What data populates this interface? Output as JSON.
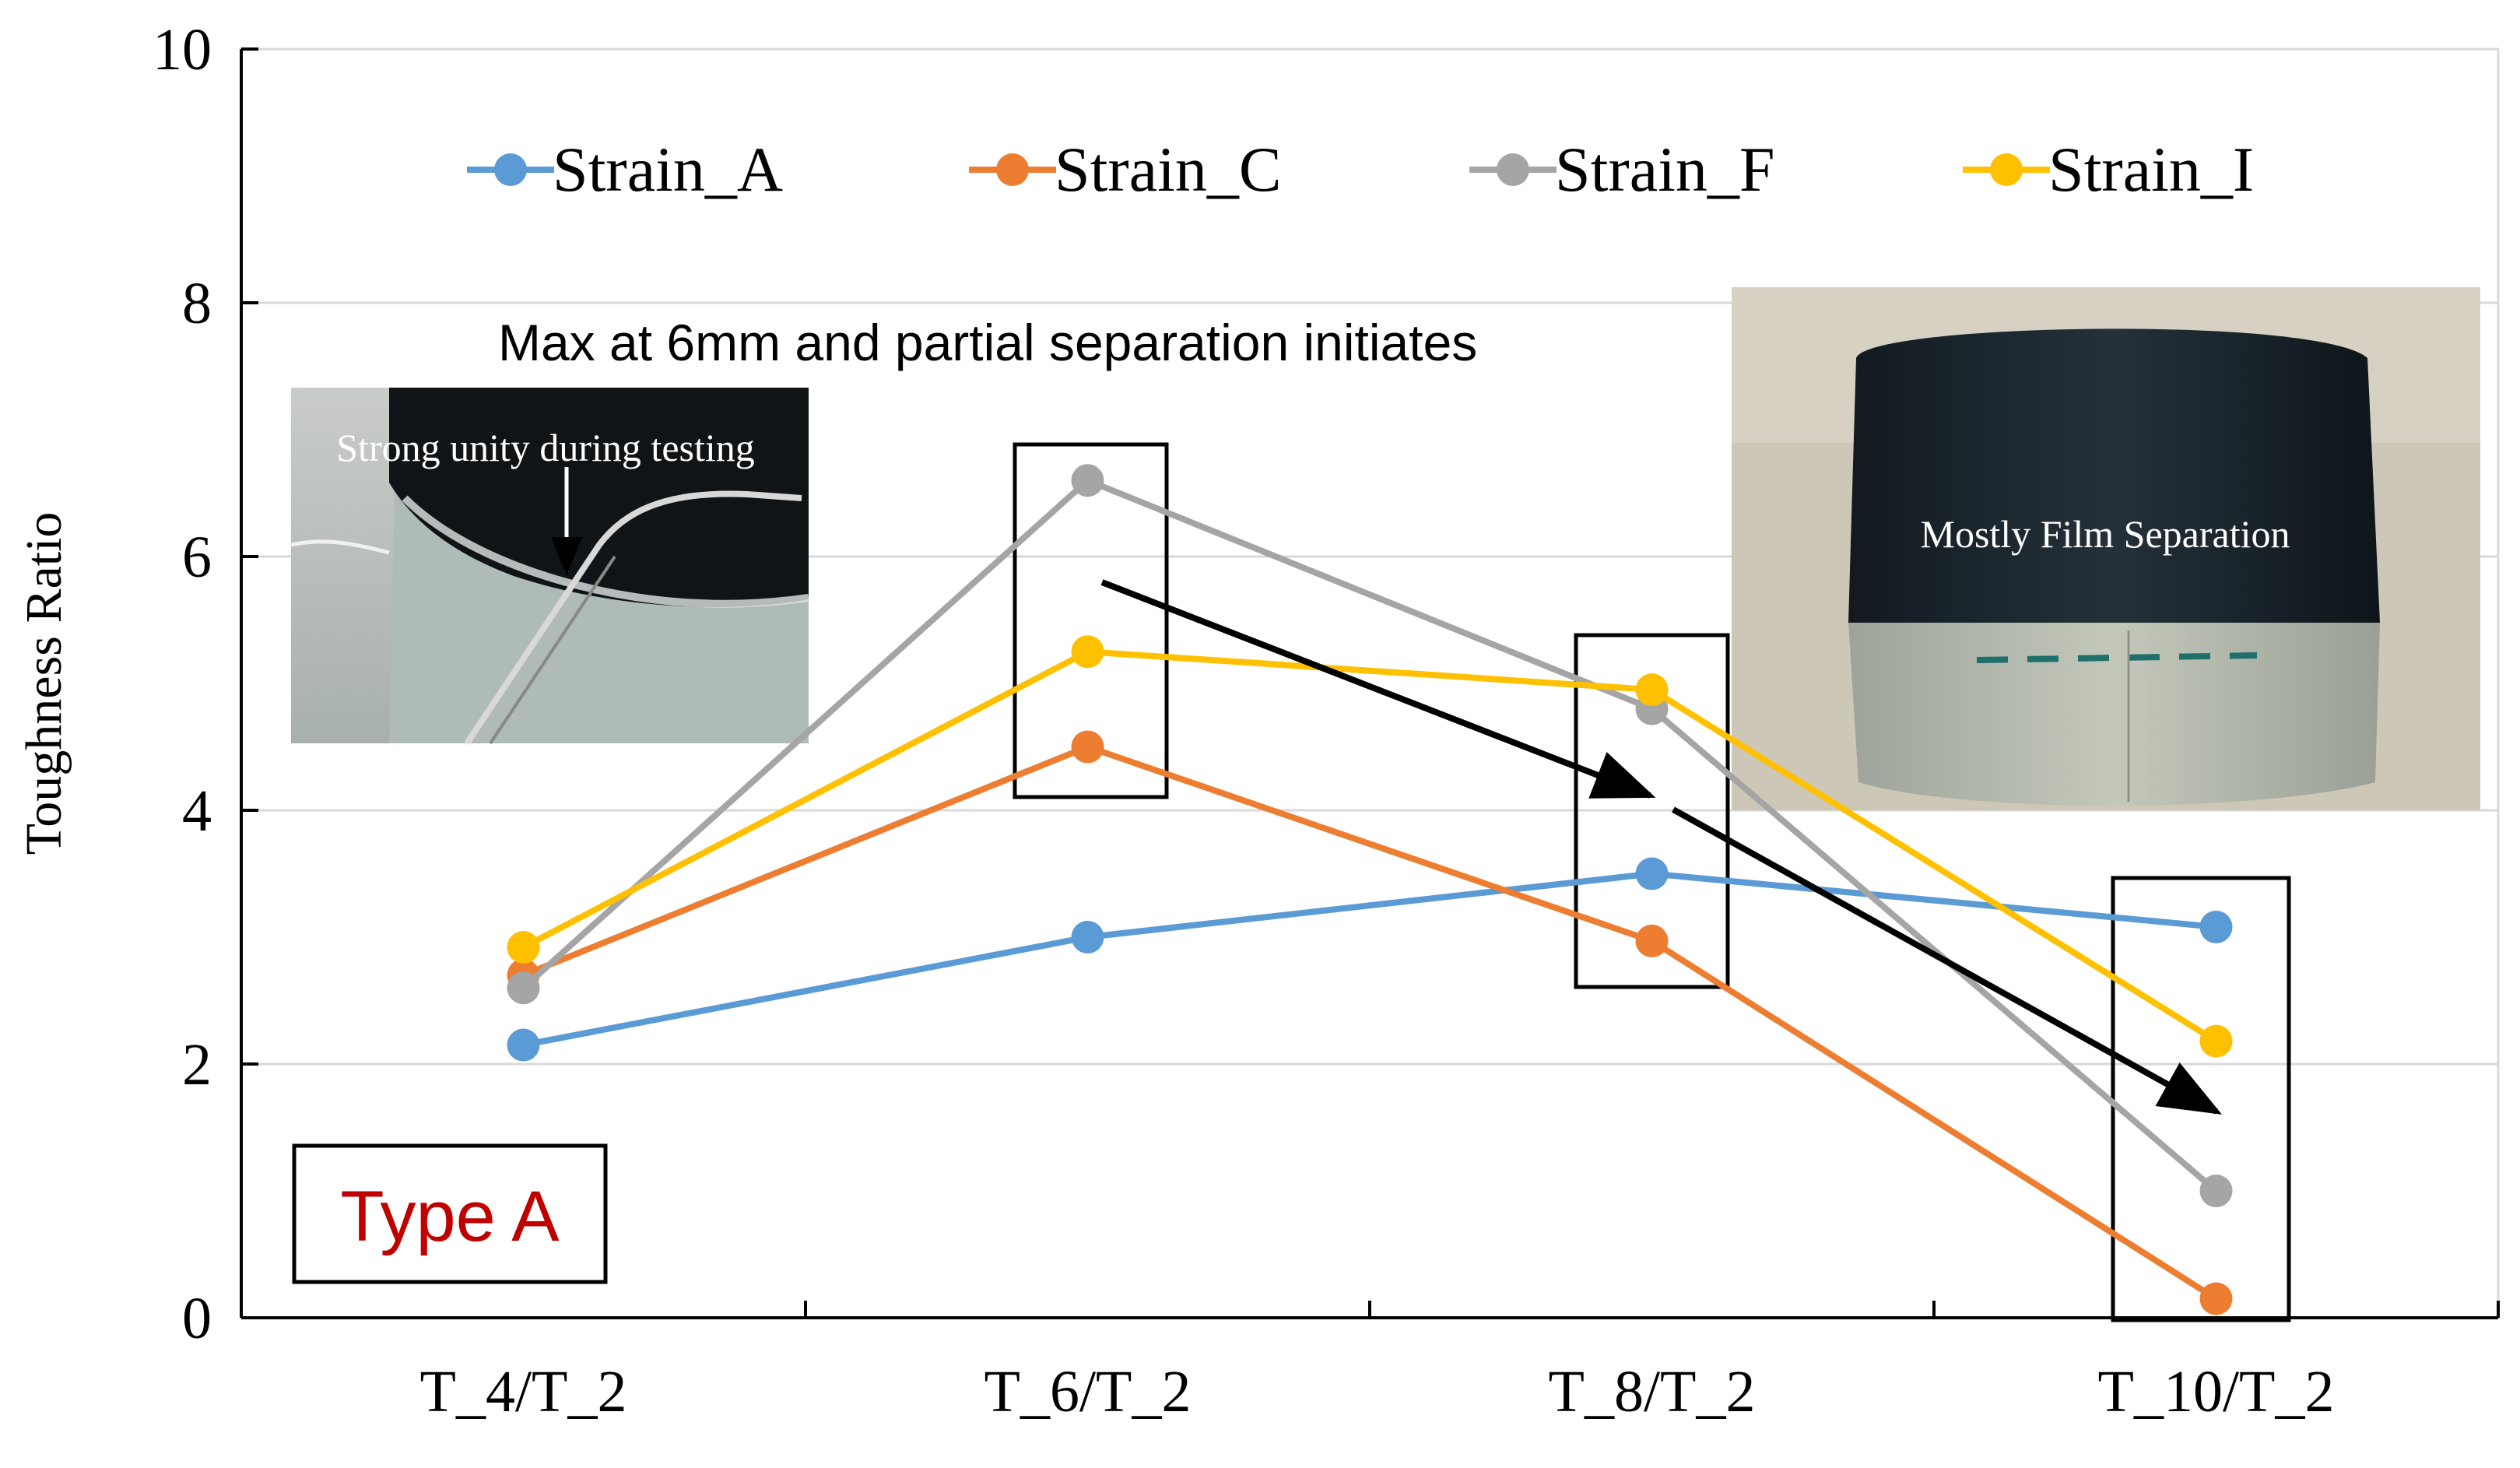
{
  "chart_data": {
    "type": "line",
    "categories": [
      "T_4/T_2",
      "T_6/T_2",
      "T_8/T_2",
      "T_10/T_2"
    ],
    "series": [
      {
        "name": "Strain_A",
        "color": "#5b9bd5",
        "values": [
          2.15,
          3.0,
          3.5,
          3.08
        ]
      },
      {
        "name": "Strain_C",
        "color": "#ed7d31",
        "values": [
          2.7,
          4.5,
          2.97,
          0.15
        ]
      },
      {
        "name": "Strain_F",
        "color": "#a5a5a5",
        "values": [
          2.6,
          6.6,
          4.8,
          1.0
        ]
      },
      {
        "name": "Strain_I",
        "color": "#ffc000",
        "values": [
          2.92,
          5.25,
          4.95,
          2.18
        ]
      }
    ],
    "ylabel": "Toughness Ratio",
    "xlabel": "",
    "ylim": [
      0,
      10
    ],
    "yticks": [
      0,
      2,
      4,
      6,
      8,
      10
    ],
    "grid": "horizontal",
    "legend_position": "top"
  },
  "annotations": {
    "headline": "Max at 6mm and partial separation initiates",
    "type_label": "Type A",
    "photo_left_caption": "Strong unity during testing",
    "photo_right_caption": "Mostly Film Separation"
  }
}
